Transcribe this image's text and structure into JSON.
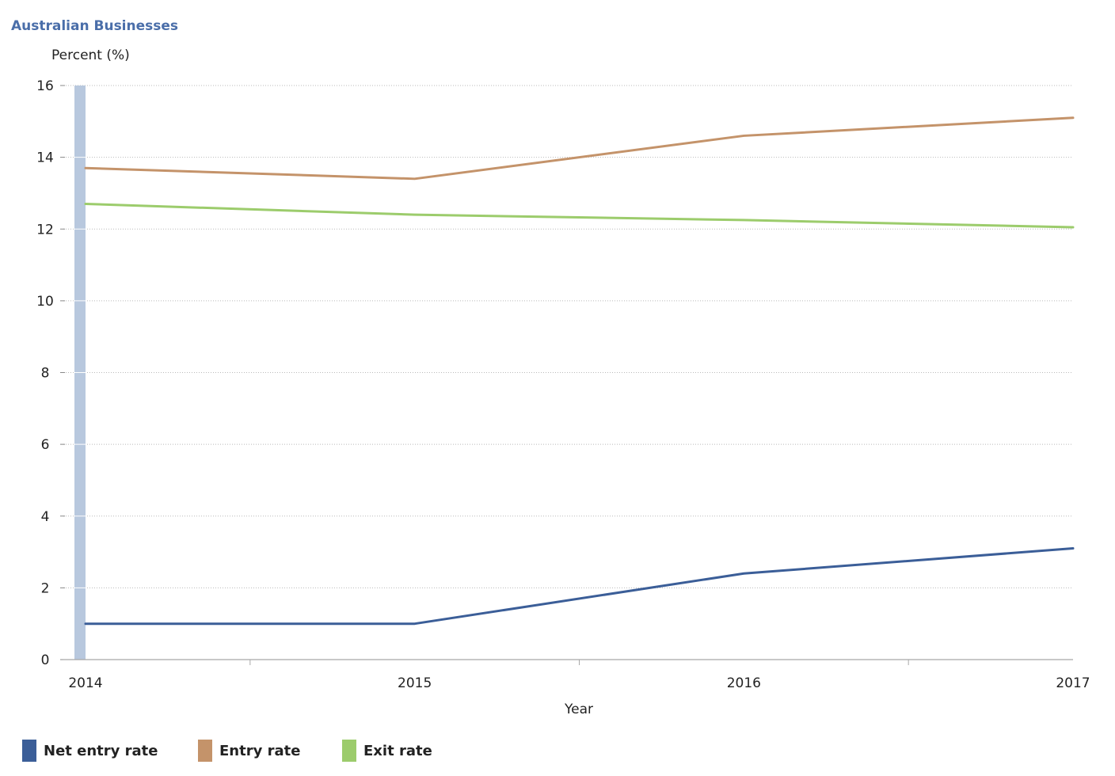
{
  "chart_data": {
    "type": "line",
    "title": "Australian Businesses",
    "ylabel": "Percent (%)",
    "xlabel": "Year",
    "categories": [
      "2014",
      "2015",
      "2016",
      "2017"
    ],
    "ylim": [
      0,
      16
    ],
    "yticks": [
      0,
      2,
      4,
      6,
      8,
      10,
      12,
      14,
      16
    ],
    "grid": true,
    "legend_position": "bottom-left",
    "series": [
      {
        "name": "Net entry rate",
        "color": "#3b5e98",
        "values": [
          1.0,
          1.0,
          2.4,
          3.1
        ]
      },
      {
        "name": "Entry rate",
        "color": "#c4936a",
        "values": [
          13.7,
          13.4,
          14.6,
          15.1
        ]
      },
      {
        "name": "Exit rate",
        "color": "#9ccc6c",
        "values": [
          12.7,
          12.4,
          12.25,
          12.05
        ]
      }
    ],
    "title_color": "#4a6ea9",
    "highlight_band_color": "#b8c8de"
  }
}
